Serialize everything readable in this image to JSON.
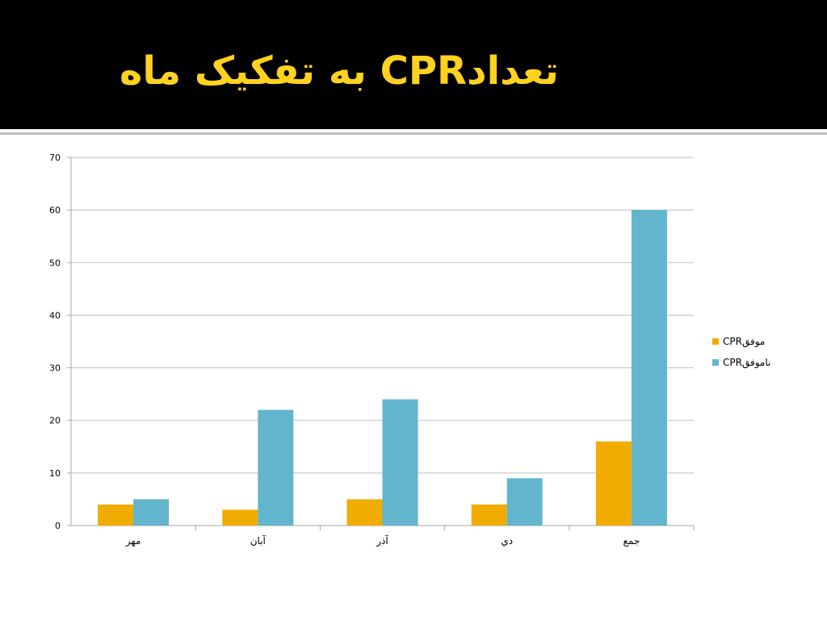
{
  "slide": {
    "title": "تعدادCPR به تفکیک ماه",
    "title_color": "#FFD21F",
    "background": "#000000"
  },
  "chart_data": {
    "type": "bar",
    "categories": [
      "مهر",
      "آبان",
      "آذر",
      "دي",
      "جمع"
    ],
    "series": [
      {
        "name": "CPRموفق",
        "values": [
          4,
          3,
          5,
          4,
          16
        ],
        "color": "#F0AC00"
      },
      {
        "name": "CPRناموفق",
        "values": [
          5,
          22,
          24,
          9,
          60
        ],
        "color": "#62B5CC"
      }
    ],
    "ylim": [
      0,
      70
    ],
    "yticks": [
      0,
      10,
      20,
      30,
      40,
      50,
      60,
      70
    ],
    "grid": true,
    "legend_position": "right"
  }
}
